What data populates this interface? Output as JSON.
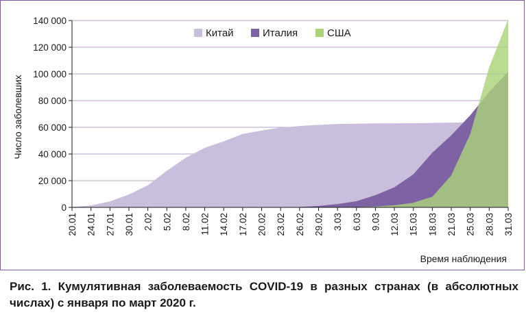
{
  "caption": "Рис. 1. Кумулятивная заболеваемость COVID-19 в разных странах (в абсолютных числах) с января по март 2020 г.",
  "chart_data": {
    "type": "area",
    "title": "",
    "xlabel": "Время наблюдения",
    "ylabel": "Число заболевших",
    "ylim": [
      0,
      140000
    ],
    "yticks": [
      0,
      20000,
      40000,
      60000,
      80000,
      100000,
      120000,
      140000
    ],
    "ytick_labels": [
      "0",
      "20 000",
      "40 000",
      "60 000",
      "80 000",
      "100 000",
      "120 000",
      "140 000"
    ],
    "legend_position": "top-center",
    "grid": "horizontal",
    "x_tick_labels": [
      "20.01",
      "24.01",
      "27.01",
      "30.01",
      "2.02",
      "5.02",
      "8.02",
      "11.02",
      "14.02",
      "17.02",
      "20.02",
      "23.02",
      "26.02",
      "29.02",
      "3.03",
      "6.03",
      "9.03",
      "12.03",
      "15.03",
      "18.03",
      "21.03",
      "25.03",
      "28.03",
      "31.03"
    ],
    "x": [
      "20.01",
      "24.01",
      "27.01",
      "30.01",
      "2.02",
      "5.02",
      "8.02",
      "11.02",
      "14.02",
      "17.02",
      "20.02",
      "23.02",
      "26.02",
      "29.02",
      "3.03",
      "6.03",
      "9.03",
      "12.03",
      "15.03",
      "18.03",
      "21.03",
      "25.03",
      "28.03",
      "31.03"
    ],
    "series": [
      {
        "name": "Китай",
        "color": "#c9bedb",
        "values": [
          300,
          1400,
          4500,
          9700,
          16500,
          27500,
          37200,
          44600,
          49500,
          55000,
          57600,
          59800,
          61000,
          61800,
          62500,
          62700,
          62900,
          63000,
          63100,
          63300,
          63500,
          63700,
          63800,
          63900
        ]
      },
      {
        "name": "Италия",
        "color": "#7d62a4",
        "values": [
          0,
          0,
          0,
          0,
          0,
          0,
          0,
          0,
          0,
          0,
          0,
          0,
          300,
          1100,
          2500,
          4600,
          9200,
          15100,
          24700,
          41000,
          54000,
          69000,
          86500,
          101700
        ]
      },
      {
        "name": "США",
        "color": "#acd37a",
        "values": [
          0,
          0,
          0,
          0,
          0,
          0,
          0,
          0,
          0,
          0,
          0,
          0,
          0,
          50,
          100,
          200,
          600,
          1600,
          3500,
          8000,
          24000,
          55000,
          105000,
          141000
        ]
      }
    ]
  }
}
